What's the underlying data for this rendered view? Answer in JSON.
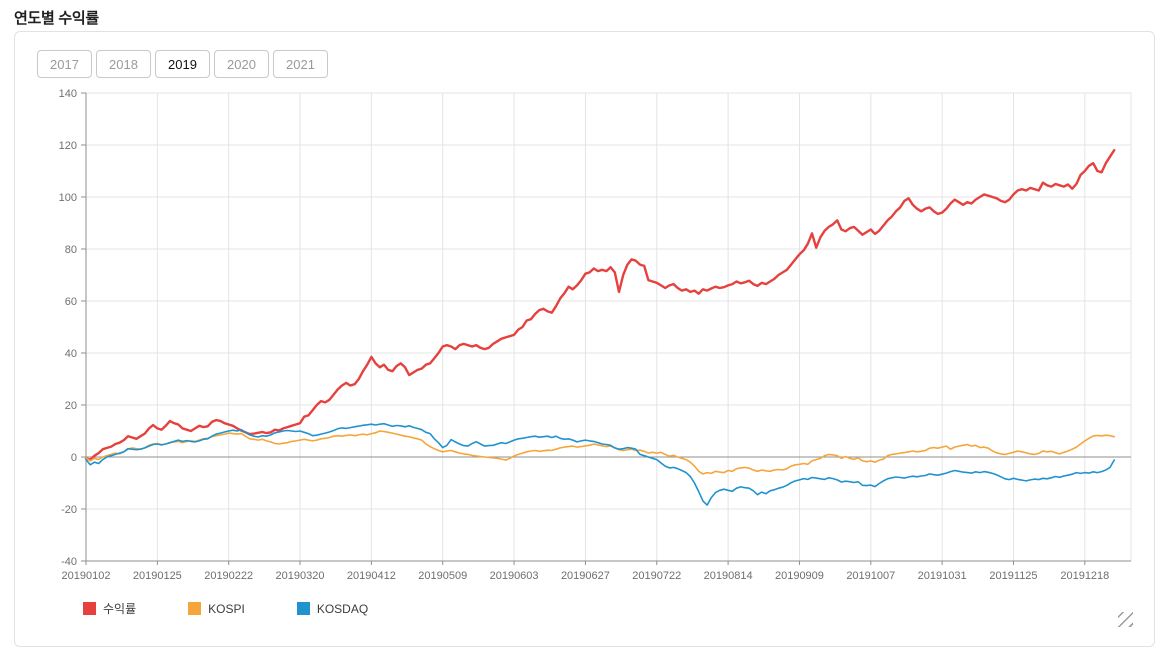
{
  "page": {
    "title": "연도별 수익률"
  },
  "year_tabs": {
    "options": [
      "2017",
      "2018",
      "2019",
      "2020",
      "2021"
    ],
    "selected": "2019"
  },
  "legend": [
    {
      "key": "returns",
      "label": "수익률",
      "color": "#e5413e"
    },
    {
      "key": "kospi",
      "label": "KOSPI",
      "color": "#f5a63b"
    },
    {
      "key": "kosdaq",
      "label": "KOSDAQ",
      "color": "#2093cf"
    }
  ],
  "colors": {
    "grid": "#e4e4e4",
    "zero_line": "#8f8f8f",
    "axis": "#8f8f8f",
    "tick_text": "#6f6f6f",
    "returns": "#e5413e",
    "kospi": "#f5a63b",
    "kosdaq": "#2093cf"
  },
  "chart_data": {
    "type": "line",
    "title": "연도별 수익률",
    "xlabel": "",
    "ylabel": "",
    "grid": true,
    "legend_position": "bottom",
    "x_axis": {
      "tick_labels": [
        "20190102",
        "20190125",
        "20190222",
        "20190320",
        "20190412",
        "20190509",
        "20190603",
        "20190627",
        "20190722",
        "20190814",
        "20190909",
        "20191007",
        "20191031",
        "20191125",
        "20191218"
      ],
      "tick_positions": [
        0,
        17,
        34,
        51,
        68,
        85,
        102,
        119,
        136,
        153,
        170,
        187,
        204,
        221,
        238
      ],
      "max_index": 249
    },
    "y_axis": {
      "min": -40,
      "max": 140,
      "step": 20,
      "tick_labels": [
        "140",
        "120",
        "100",
        "80",
        "60",
        "40",
        "20",
        "0",
        "-20",
        "-40"
      ]
    },
    "series": [
      {
        "key": "returns",
        "name": "수익률",
        "color": "#e5413e",
        "values": [
          -0.5,
          -1,
          0.5,
          1.5,
          3,
          3.5,
          4,
          5,
          5.5,
          6.5,
          8,
          7.5,
          7,
          8,
          9,
          11,
          12.3,
          11,
          10.5,
          12,
          13.8,
          13,
          12.5,
          11,
          10.5,
          10,
          11,
          12,
          11.5,
          11.8,
          13.5,
          14.2,
          13.9,
          13,
          12.5,
          12,
          11,
          10.2,
          9.5,
          8.8,
          9,
          9.3,
          9.6,
          9.2,
          9.5,
          10.5,
          10.2,
          11,
          11.5,
          12,
          12.5,
          13,
          15.5,
          16,
          18,
          20,
          21.5,
          21,
          22,
          24,
          26,
          27.5,
          28.5,
          27.5,
          28,
          30,
          33,
          35.5,
          38.5,
          36,
          34.5,
          35.5,
          33.5,
          33,
          35,
          36,
          34.5,
          31.5,
          32.5,
          33.5,
          34,
          35.5,
          36,
          38,
          40,
          42.5,
          43,
          42.5,
          41.5,
          43,
          43.5,
          43,
          42.5,
          43,
          42,
          41.5,
          42,
          43.5,
          44.5,
          45.5,
          46,
          46.5,
          47,
          49,
          50,
          52.5,
          53,
          55,
          56.5,
          57,
          56,
          55.5,
          58,
          61,
          63,
          65.5,
          64.5,
          66,
          68,
          70.5,
          71,
          72.5,
          71.5,
          72,
          71.5,
          73,
          71,
          63.5,
          70,
          74,
          76,
          75.5,
          74,
          73.5,
          68,
          67.5,
          67,
          66,
          65,
          66,
          66.5,
          65,
          64,
          64.5,
          63.5,
          64,
          62.8,
          64.5,
          64,
          64.8,
          65.5,
          65,
          65.3,
          66,
          66.5,
          67.5,
          66.8,
          67.2,
          67.8,
          66.5,
          65.8,
          67,
          66.5,
          67.5,
          68.5,
          70,
          71,
          72,
          74,
          76,
          78,
          79.5,
          82,
          86,
          80.5,
          84.5,
          87,
          88.5,
          89.5,
          91,
          87.5,
          86.8,
          88,
          88.5,
          87,
          85.5,
          86.5,
          87.5,
          85.8,
          87,
          89,
          91,
          92.5,
          94.5,
          96,
          98.5,
          99.5,
          97,
          95.5,
          94.5,
          95.5,
          96,
          94.5,
          93.5,
          94,
          95.5,
          97.5,
          99,
          98,
          97,
          98,
          97.5,
          99,
          100,
          101,
          100.5,
          100,
          99.5,
          98.5,
          98,
          99,
          101,
          102.5,
          103,
          102.5,
          103.5,
          103,
          102.5,
          105.5,
          104.5,
          104,
          105,
          104.5,
          104,
          104.8,
          103.2,
          105,
          108.5,
          110,
          112,
          113,
          110,
          109.5,
          113,
          115.5,
          118
        ]
      },
      {
        "key": "kospi",
        "name": "KOSPI",
        "color": "#f5a63b",
        "values": [
          -0.3,
          -1.5,
          -0.5,
          -1,
          0,
          0.5,
          1,
          1.5,
          1.2,
          2,
          3,
          3.5,
          3.2,
          3,
          3.5,
          4.5,
          5,
          5.2,
          4.8,
          5,
          5.5,
          5.8,
          6,
          5.5,
          6,
          6.2,
          6,
          6.5,
          7,
          7.2,
          7.8,
          8.2,
          8.5,
          8.8,
          9.2,
          9,
          8.8,
          9,
          8,
          7,
          6.8,
          6.5,
          6.8,
          6.2,
          5.8,
          5.2,
          5,
          5.3,
          5.5,
          6,
          6.2,
          6.5,
          6.8,
          6.5,
          6.2,
          6.5,
          7,
          7.2,
          7.5,
          8,
          8.2,
          8,
          8.3,
          8.5,
          8.2,
          8.5,
          8.8,
          8.5,
          9,
          9.3,
          10,
          9.8,
          9.5,
          9.2,
          8.8,
          8.4,
          8,
          7.8,
          7.4,
          7,
          6.5,
          5,
          4,
          3.2,
          2.5,
          2,
          2.3,
          2.5,
          2,
          1.5,
          1.2,
          1,
          0.6,
          0.4,
          0.2,
          0,
          -0.2,
          -0.3,
          -0.5,
          -0.8,
          -1.2,
          -0.5,
          0.4,
          1,
          1.5,
          2,
          2.3,
          2.5,
          2.2,
          2.4,
          2.6,
          2.5,
          3,
          3.5,
          3.8,
          4,
          4.2,
          3.8,
          4,
          4.3,
          4.5,
          5,
          4.6,
          4.3,
          4,
          4.2,
          3.5,
          2.8,
          2.5,
          2.8,
          3,
          2.5,
          2.6,
          2.2,
          1.5,
          1.8,
          1.5,
          1.8,
          1,
          0.3,
          0.6,
          0,
          -0.5,
          -1,
          -2,
          -3.5,
          -5.5,
          -6.5,
          -6,
          -6.3,
          -5.5,
          -5.8,
          -6,
          -5.2,
          -5.5,
          -4.5,
          -4.2,
          -4,
          -4.3,
          -5,
          -5.5,
          -5,
          -5.3,
          -5.5,
          -5,
          -4.8,
          -5,
          -4.5,
          -3.5,
          -3,
          -2.8,
          -2.5,
          -2.8,
          -1.5,
          -1,
          -0.5,
          0.5,
          1,
          0.8,
          0.5,
          -0.5,
          0.2,
          -0.5,
          -0.9,
          -0.3,
          -1.5,
          -1.8,
          -1.5,
          -2,
          -1.2,
          -0.8,
          0.5,
          1,
          1.2,
          1.5,
          1.7,
          2,
          2.3,
          2,
          2.2,
          2.5,
          3.4,
          3.6,
          3.4,
          3.8,
          4.2,
          3,
          3.8,
          4.2,
          4.5,
          4.8,
          4.2,
          4.5,
          3.6,
          3.8,
          3.4,
          2.3,
          1.6,
          1.2,
          1,
          1.4,
          1.8,
          2.3,
          2,
          1.6,
          1.2,
          1,
          1.4,
          2.3,
          2,
          2.2,
          1.6,
          1.2,
          1.8,
          2.3,
          3,
          3.8,
          5,
          6.2,
          7.2,
          8.1,
          8.3,
          8.1,
          8.4,
          8.2,
          7.8
        ]
      },
      {
        "key": "kosdaq",
        "name": "KOSDAQ",
        "color": "#2093cf",
        "values": [
          -1,
          -3,
          -2,
          -2.5,
          -1,
          0,
          0.5,
          1,
          1.5,
          2,
          3.2,
          3,
          2.8,
          3,
          3.5,
          4.2,
          4.8,
          5,
          4.6,
          5,
          5.5,
          6,
          6.5,
          6,
          6.3,
          6,
          5.8,
          6.2,
          6.8,
          7,
          8,
          8.8,
          9.2,
          9.6,
          10,
          10.3,
          10,
          10.5,
          9.5,
          8.5,
          8,
          7.7,
          8.2,
          8,
          8.5,
          9.3,
          9.6,
          10,
          10.2,
          10,
          9.8,
          10,
          9.5,
          9,
          8.2,
          8.4,
          8.8,
          9.2,
          9.6,
          10.2,
          10.9,
          11.2,
          11,
          11.3,
          11.6,
          11.9,
          12.2,
          12.4,
          12.6,
          12.3,
          12.6,
          12.8,
          12.3,
          11.8,
          12.1,
          12,
          11.6,
          12,
          11.4,
          11,
          10.5,
          9.5,
          9,
          7,
          5.5,
          3.6,
          4.5,
          6.7,
          5.8,
          5,
          4.4,
          4.2,
          5.2,
          5.9,
          5,
          4.2,
          4.4,
          4.5,
          5,
          5.5,
          5.2,
          5.8,
          6.5,
          7,
          7.2,
          7.5,
          7.8,
          8,
          7.6,
          7.8,
          8,
          7.5,
          8,
          7.2,
          6.8,
          7,
          6.5,
          5.8,
          6.2,
          6.5,
          6.2,
          6,
          5.5,
          5,
          4.8,
          4.5,
          3.5,
          3,
          3.2,
          3.6,
          3.4,
          3,
          1,
          0.5,
          0,
          -0.5,
          -1,
          -2.3,
          -3.5,
          -4.2,
          -4,
          -4.5,
          -5.2,
          -6,
          -7.5,
          -10,
          -13.3,
          -16.9,
          -18.5,
          -15.6,
          -13.7,
          -12.8,
          -12.4,
          -12.8,
          -13.2,
          -12,
          -11.5,
          -11.8,
          -12,
          -13,
          -14.5,
          -13.5,
          -14.1,
          -13,
          -12.6,
          -12,
          -11.6,
          -10.9,
          -9.9,
          -9.2,
          -8.8,
          -8.3,
          -8.6,
          -7.9,
          -8.1,
          -8.4,
          -8.6,
          -8,
          -8.3,
          -8.8,
          -9.6,
          -9.3,
          -9.5,
          -9.8,
          -9.5,
          -10.9,
          -11,
          -10.8,
          -11.4,
          -10.2,
          -9.2,
          -8.4,
          -8,
          -7.7,
          -7.9,
          -8.1,
          -7.7,
          -7.4,
          -7.6,
          -7.3,
          -7.1,
          -6.5,
          -6.8,
          -7,
          -6.6,
          -6.2,
          -5.6,
          -5.2,
          -5.5,
          -5.8,
          -6,
          -6.2,
          -5.7,
          -6,
          -5.6,
          -5.9,
          -6.3,
          -6.9,
          -7.6,
          -8.4,
          -8.7,
          -8.2,
          -8.6,
          -8.9,
          -9.2,
          -8.8,
          -8.5,
          -8.7,
          -8.2,
          -8.4,
          -8,
          -7.5,
          -7.8,
          -7.3,
          -7,
          -6.6,
          -6,
          -6.3,
          -6,
          -6.2,
          -5.7,
          -6,
          -5.6,
          -5,
          -4,
          -1.2
        ]
      }
    ]
  }
}
